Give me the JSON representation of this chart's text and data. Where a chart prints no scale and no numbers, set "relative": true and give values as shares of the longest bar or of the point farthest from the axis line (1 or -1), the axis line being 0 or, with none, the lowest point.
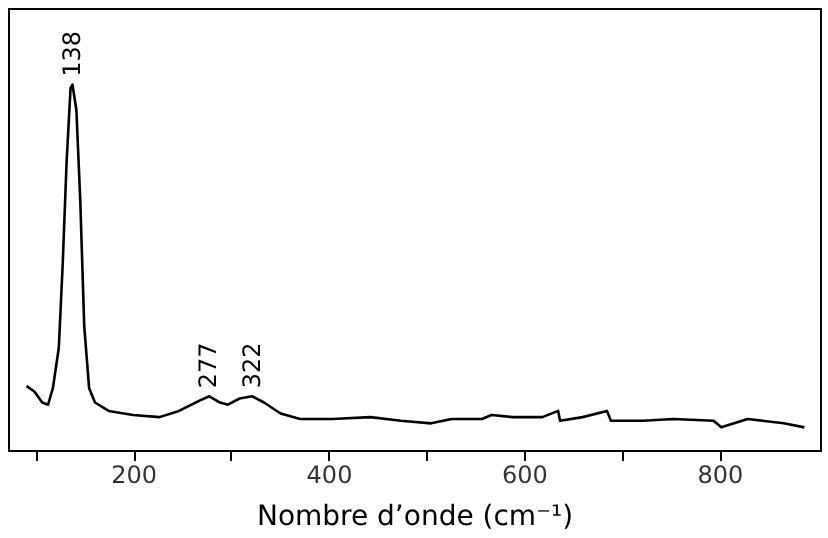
{
  "chart_data": {
    "type": "line",
    "relative": true,
    "xlabel": "Nombre d’onde (cm⁻¹)",
    "xlim": [
      72,
      903
    ],
    "xticks": [
      {
        "value": 100,
        "label": null
      },
      200,
      {
        "value": 300,
        "label": null
      },
      400,
      {
        "value": 500,
        "label": null
      },
      600,
      {
        "value": 700,
        "label": null
      },
      800
    ],
    "series": [
      {
        "color": "#000000",
        "x": [
          91,
          99,
          107,
          113,
          118,
          124,
          128,
          132,
          136,
          138,
          142,
          146,
          150,
          155,
          161,
          175,
          200,
          227,
          247,
          268,
          278,
          289,
          297,
          309,
          322,
          334,
          351,
          371,
          404,
          443,
          474,
          505,
          526,
          557,
          567,
          588,
          619,
          635,
          637,
          660,
          685,
          689,
          722,
          753,
          794,
          802,
          829,
          866,
          887
        ],
        "values": [
          0.175,
          0.16,
          0.13,
          0.124,
          0.17,
          0.28,
          0.51,
          0.79,
          0.99,
          1.0,
          0.93,
          0.68,
          0.34,
          0.17,
          0.13,
          0.107,
          0.096,
          0.09,
          0.107,
          0.135,
          0.147,
          0.13,
          0.124,
          0.141,
          0.147,
          0.13,
          0.1,
          0.085,
          0.085,
          0.09,
          0.08,
          0.073,
          0.085,
          0.085,
          0.096,
          0.09,
          0.09,
          0.107,
          0.08,
          0.09,
          0.107,
          0.08,
          0.08,
          0.085,
          0.08,
          0.062,
          0.085,
          0.073,
          0.062
        ]
      }
    ],
    "annotations": [
      {
        "text": "138",
        "x": 138,
        "y": 1.0
      },
      {
        "text": "277",
        "x": 277,
        "y": 0.147
      },
      {
        "text": "322",
        "x": 322,
        "y": 0.147
      }
    ],
    "grid": false,
    "marker": "none",
    "line_style": "solid"
  }
}
